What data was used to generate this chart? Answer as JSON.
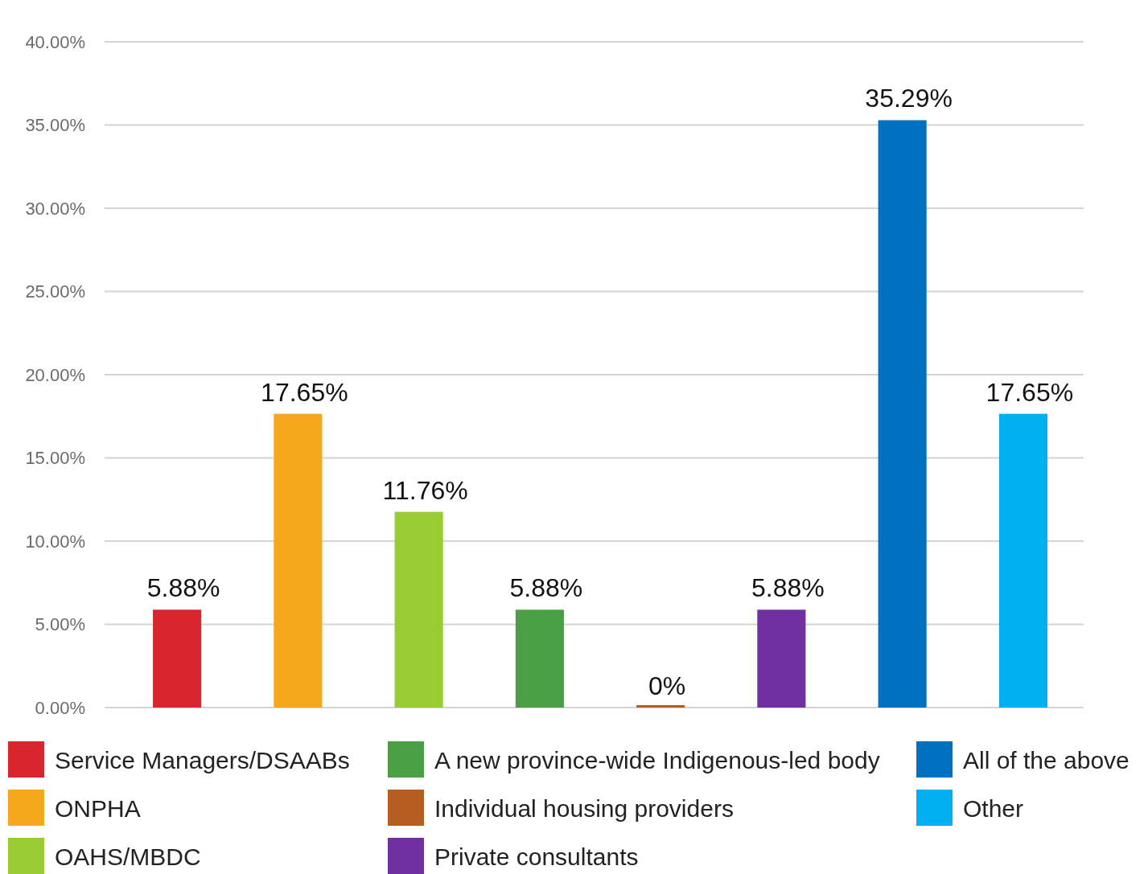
{
  "chart_data": {
    "type": "bar",
    "categories": [
      null,
      null,
      null,
      null,
      null,
      null,
      null,
      null
    ],
    "series": [
      {
        "name": "Service Managers/DSAABs",
        "color": "#d9262e",
        "values": [
          5.88,
          null,
          null,
          null,
          null,
          null,
          null,
          null
        ],
        "value_labels": [
          "5.88%",
          null,
          null,
          null,
          null,
          null,
          null,
          null
        ]
      },
      {
        "name": "ONPHA",
        "color": "#f6a81d",
        "values": [
          null,
          17.65,
          null,
          null,
          null,
          null,
          null,
          null
        ],
        "value_labels": [
          null,
          "17.65%",
          null,
          null,
          null,
          null,
          null,
          null
        ]
      },
      {
        "name": "OAHS/MBDC",
        "color": "#99cc33",
        "values": [
          null,
          null,
          11.76,
          null,
          null,
          null,
          null,
          null
        ],
        "value_labels": [
          null,
          null,
          "11.76%",
          null,
          null,
          null,
          null,
          null
        ]
      },
      {
        "name": "A new province-wide Indigenous-led body",
        "color": "#4a9e44",
        "values": [
          null,
          null,
          null,
          5.88,
          null,
          null,
          null,
          null
        ],
        "value_labels": [
          null,
          null,
          null,
          "5.88%",
          null,
          null,
          null,
          null
        ]
      },
      {
        "name": "Individual housing providers",
        "color": "#b55e22",
        "values": [
          null,
          null,
          null,
          null,
          0,
          null,
          null,
          null
        ],
        "value_labels": [
          null,
          null,
          null,
          null,
          "0%",
          null,
          null,
          null
        ]
      },
      {
        "name": "Private consultants",
        "color": "#7030a0",
        "values": [
          null,
          null,
          null,
          null,
          null,
          5.88,
          null,
          null
        ],
        "value_labels": [
          null,
          null,
          null,
          null,
          null,
          "5.88%",
          null,
          null
        ]
      },
      {
        "name": "All of the above",
        "color": "#0070c0",
        "values": [
          null,
          null,
          null,
          null,
          null,
          null,
          35.29,
          null
        ],
        "value_labels": [
          null,
          null,
          null,
          null,
          null,
          null,
          "35.29%",
          null
        ]
      },
      {
        "name": "Other",
        "color": "#00b0f0",
        "values": [
          null,
          null,
          null,
          null,
          null,
          null,
          null,
          17.65
        ],
        "value_labels": [
          null,
          null,
          null,
          null,
          null,
          null,
          null,
          "17.65%"
        ]
      }
    ],
    "ylim": [
      0,
      40
    ],
    "yticks": [
      {
        "value": 0,
        "label": "0.00%"
      },
      {
        "value": 5,
        "label": "5.00%"
      },
      {
        "value": 10,
        "label": "10.00%"
      },
      {
        "value": 15,
        "label": "15.00%"
      },
      {
        "value": 20,
        "label": "20.00%"
      },
      {
        "value": 25,
        "label": "25.00%"
      },
      {
        "value": 30,
        "label": "30.00%"
      },
      {
        "value": 35,
        "label": "35.00%"
      },
      {
        "value": 40,
        "label": "40.00%"
      }
    ],
    "grid": "y",
    "legend": "bottom",
    "tick_labels": "y"
  }
}
